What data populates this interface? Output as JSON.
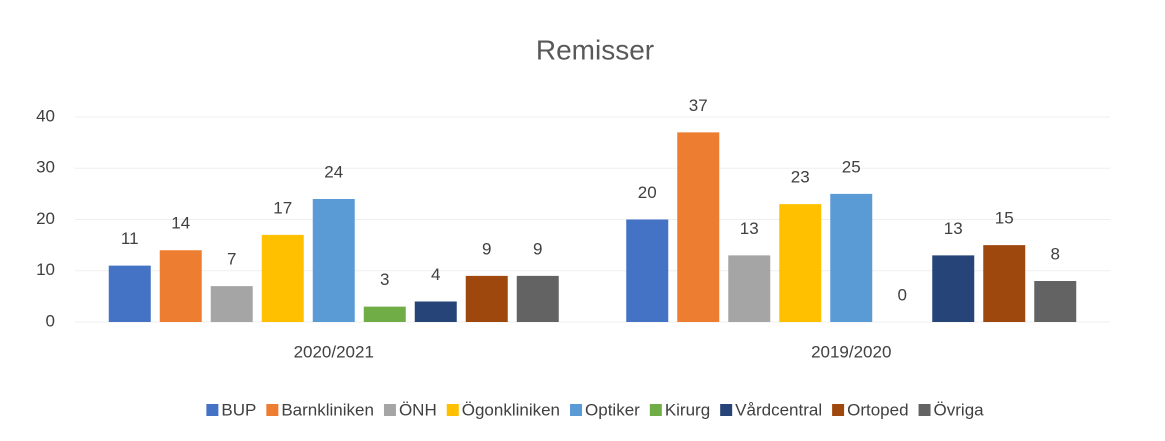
{
  "chart_data": {
    "type": "bar",
    "title": "Remisser",
    "categories": [
      "2020/2021",
      "2019/2020"
    ],
    "series": [
      {
        "name": "BUP",
        "color": "#4472c4",
        "values": [
          11,
          20
        ]
      },
      {
        "name": "Barnkliniken",
        "color": "#ed7d31",
        "values": [
          14,
          37
        ]
      },
      {
        "name": "ÖNH",
        "color": "#a5a5a5",
        "values": [
          7,
          13
        ]
      },
      {
        "name": "Ögonkliniken",
        "color": "#ffc000",
        "values": [
          17,
          23
        ]
      },
      {
        "name": "Optiker",
        "color": "#5b9bd5",
        "values": [
          24,
          25
        ]
      },
      {
        "name": "Kirurg",
        "color": "#70ad47",
        "values": [
          3,
          0
        ]
      },
      {
        "name": "Vårdcentral",
        "color": "#264478",
        "values": [
          4,
          13
        ]
      },
      {
        "name": "Ortoped",
        "color": "#9e480e",
        "values": [
          9,
          15
        ]
      },
      {
        "name": "Övriga",
        "color": "#636363",
        "values": [
          9,
          8
        ]
      }
    ],
    "ylim": [
      0,
      40
    ],
    "yticks": [
      0,
      10,
      20,
      30,
      40
    ],
    "grid": true,
    "legend": "bottom"
  }
}
